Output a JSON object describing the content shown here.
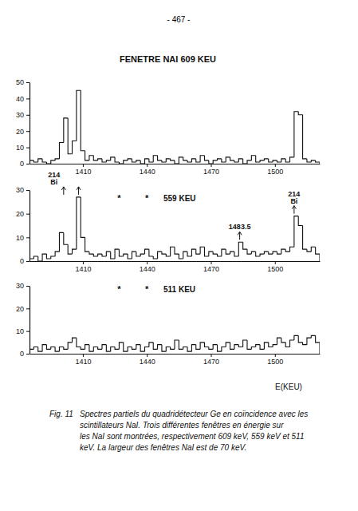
{
  "page_number": "- 467 -",
  "chart_data": [
    {
      "type": "histogram",
      "title": "FENETRE NAI 609 KEU",
      "bins": [
        1385,
        1387,
        1389,
        1391,
        1393,
        1395,
        1397,
        1399,
        1401,
        1403,
        1405,
        1407,
        1409,
        1411,
        1413,
        1415,
        1417,
        1419,
        1421,
        1423,
        1425,
        1427,
        1429,
        1431,
        1433,
        1435,
        1437,
        1439,
        1441,
        1443,
        1445,
        1447,
        1449,
        1451,
        1453,
        1455,
        1457,
        1459,
        1461,
        1463,
        1465,
        1467,
        1469,
        1471,
        1473,
        1475,
        1477,
        1479,
        1481,
        1483,
        1485,
        1487,
        1489,
        1491,
        1493,
        1495,
        1497,
        1499,
        1501,
        1503,
        1505,
        1507,
        1509,
        1511,
        1513,
        1515,
        1517,
        1519,
        1521
      ],
      "values": [
        2,
        1,
        3,
        1,
        0,
        2,
        3,
        13,
        28,
        6,
        14,
        45,
        8,
        2,
        5,
        2,
        3,
        1,
        2,
        4,
        1,
        0,
        2,
        3,
        1,
        2,
        0,
        3,
        1,
        5,
        2,
        1,
        3,
        2,
        0,
        4,
        2,
        1,
        3,
        1,
        5,
        2,
        0,
        2,
        3,
        1,
        4,
        2,
        1,
        3,
        0,
        2,
        5,
        1,
        2,
        3,
        1,
        2,
        1,
        3,
        1,
        4,
        32,
        30,
        3,
        1,
        2,
        1
      ],
      "color": "#111111",
      "xlim": [
        1385,
        1521
      ],
      "xticks": [
        1410,
        1440,
        1470,
        1500
      ],
      "ylim": [
        0,
        50
      ],
      "yticks": [
        0,
        10,
        20,
        30,
        40,
        50
      ]
    },
    {
      "type": "histogram",
      "title": "559 KEU",
      "bins": [
        1385,
        1387,
        1389,
        1391,
        1393,
        1395,
        1397,
        1399,
        1401,
        1403,
        1405,
        1407,
        1409,
        1411,
        1413,
        1415,
        1417,
        1419,
        1421,
        1423,
        1425,
        1427,
        1429,
        1431,
        1433,
        1435,
        1437,
        1439,
        1441,
        1443,
        1445,
        1447,
        1449,
        1451,
        1453,
        1455,
        1457,
        1459,
        1461,
        1463,
        1465,
        1467,
        1469,
        1471,
        1473,
        1475,
        1477,
        1479,
        1481,
        1483,
        1485,
        1487,
        1489,
        1491,
        1493,
        1495,
        1497,
        1499,
        1501,
        1503,
        1505,
        1507,
        1509,
        1511,
        1513,
        1515,
        1517,
        1519,
        1521
      ],
      "values": [
        1,
        2,
        0,
        3,
        1,
        2,
        4,
        12,
        7,
        3,
        5,
        27,
        10,
        4,
        3,
        2,
        3,
        2,
        4,
        1,
        5,
        2,
        3,
        1,
        4,
        2,
        3,
        5,
        2,
        1,
        4,
        3,
        2,
        6,
        3,
        1,
        4,
        2,
        5,
        3,
        6,
        2,
        4,
        3,
        2,
        5,
        3,
        4,
        2,
        8,
        5,
        3,
        4,
        2,
        3,
        4,
        3,
        4,
        3,
        5,
        4,
        6,
        19,
        15,
        5,
        4,
        6,
        3
      ],
      "color": "#111111",
      "xlim": [
        1385,
        1521
      ],
      "xticks": [
        1410,
        1440,
        1470,
        1500
      ],
      "ylim": [
        0,
        30
      ],
      "yticks": [
        0,
        10,
        20,
        30
      ],
      "symbols": [
        {
          "text": "*",
          "x": 1427
        },
        {
          "text": "*",
          "x": 1440
        }
      ],
      "annotations": [
        {
          "text": [
            "214",
            "Bi"
          ],
          "x": [
            1401,
            1408
          ]
        },
        {
          "text": [
            "1483.5"
          ],
          "x": [
            1483.5
          ]
        },
        {
          "text": [
            "214",
            "Bi"
          ],
          "x": [
            1509
          ]
        }
      ]
    },
    {
      "type": "histogram",
      "title": "511 KEU",
      "bins": [
        1385,
        1387,
        1389,
        1391,
        1393,
        1395,
        1397,
        1399,
        1401,
        1403,
        1405,
        1407,
        1409,
        1411,
        1413,
        1415,
        1417,
        1419,
        1421,
        1423,
        1425,
        1427,
        1429,
        1431,
        1433,
        1435,
        1437,
        1439,
        1441,
        1443,
        1445,
        1447,
        1449,
        1451,
        1453,
        1455,
        1457,
        1459,
        1461,
        1463,
        1465,
        1467,
        1469,
        1471,
        1473,
        1475,
        1477,
        1479,
        1481,
        1483,
        1485,
        1487,
        1489,
        1491,
        1493,
        1495,
        1497,
        1499,
        1501,
        1503,
        1505,
        1507,
        1509,
        1511,
        1513,
        1515,
        1517,
        1519,
        1521
      ],
      "values": [
        2,
        3,
        1,
        4,
        2,
        3,
        1,
        3,
        2,
        5,
        7,
        3,
        2,
        4,
        1,
        3,
        2,
        4,
        1,
        3,
        2,
        5,
        1,
        3,
        2,
        4,
        1,
        3,
        5,
        2,
        4,
        1,
        3,
        2,
        6,
        2,
        3,
        1,
        4,
        2,
        5,
        3,
        2,
        4,
        1,
        3,
        5,
        2,
        4,
        3,
        6,
        2,
        3,
        4,
        2,
        5,
        3,
        4,
        7,
        5,
        3,
        6,
        8,
        5,
        4,
        7,
        8,
        5
      ],
      "color": "#111111",
      "xlim": [
        1385,
        1521
      ],
      "xticks": [
        1410,
        1440,
        1470,
        1500
      ],
      "ylim": [
        0,
        30
      ],
      "yticks": [
        0,
        10,
        20,
        30
      ],
      "xlabel": "E(KEU)",
      "symbols": [
        {
          "text": "*",
          "x": 1427
        },
        {
          "text": "*",
          "x": 1440
        }
      ]
    }
  ],
  "caption": {
    "label": "Fig. 11",
    "lines": [
      "Spectres partiels du quadridétecteur Ge en coïncidence avec les",
      "scintillateurs NaI. Trois différentes fenêtres en énergie sur",
      "les NaI sont montrées, respectivement 609 keV, 559 keV et 511",
      "keV. La largeur des fenêtres NaI est de 70 keV."
    ]
  }
}
